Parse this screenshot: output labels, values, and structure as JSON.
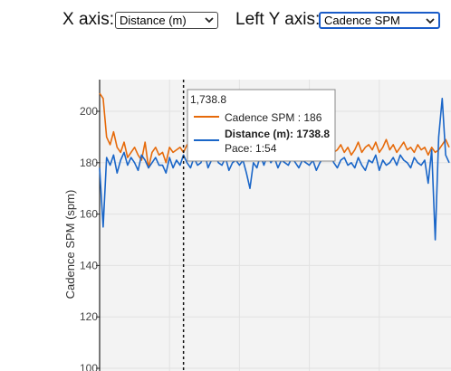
{
  "controls": {
    "x_axis_label": "X axis:",
    "x_axis_value": "Distance (m)",
    "left_y_axis_label": "Left Y axis:",
    "left_y_axis_value": "Cadence SPM"
  },
  "colors": {
    "cadence": "#e66a0a",
    "distance": "#1a66c8",
    "background": "#f3f3f3",
    "grid": "#e2e2e2"
  },
  "tooltip": {
    "header": "1,738.8",
    "row1": "Cadence SPM : 186",
    "row2_bold": "Distance (m): 1738.8",
    "row3": "Pace: 1:54"
  },
  "chart_data": {
    "type": "line",
    "ylabel": "Cadence SPM (spm)",
    "xlabel": "",
    "ylim": [
      100,
      212
    ],
    "yticks": [
      100,
      120,
      140,
      160,
      180,
      200
    ],
    "grid": true,
    "series": [
      {
        "name": "Cadence SPM",
        "points": [
          [
            0,
            207
          ],
          [
            1,
            205
          ],
          [
            2,
            190
          ],
          [
            3,
            187
          ],
          [
            4,
            192
          ],
          [
            5,
            186
          ],
          [
            6,
            184
          ],
          [
            7,
            188
          ],
          [
            8,
            182
          ],
          [
            9,
            184
          ],
          [
            10,
            186
          ],
          [
            11,
            183
          ],
          [
            12,
            181
          ],
          [
            13,
            188
          ],
          [
            14,
            178
          ],
          [
            15,
            184
          ],
          [
            16,
            186
          ],
          [
            17,
            183
          ],
          [
            18,
            184
          ],
          [
            19,
            180
          ],
          [
            20,
            186
          ],
          [
            21,
            184
          ],
          [
            22,
            185
          ],
          [
            23,
            186
          ],
          [
            24,
            184
          ],
          [
            25,
            187
          ],
          [
            26,
            185
          ],
          [
            27,
            186
          ],
          [
            28,
            183
          ],
          [
            29,
            185
          ],
          [
            30,
            186
          ],
          [
            31,
            184
          ],
          [
            32,
            186
          ],
          [
            33,
            187
          ],
          [
            34,
            185
          ],
          [
            35,
            186
          ],
          [
            36,
            185
          ],
          [
            37,
            186
          ],
          [
            38,
            184
          ],
          [
            39,
            186
          ],
          [
            40,
            186
          ],
          [
            60,
            185
          ],
          [
            66,
            186
          ],
          [
            67,
            184
          ],
          [
            68,
            185
          ],
          [
            69,
            187
          ],
          [
            70,
            184
          ],
          [
            71,
            186
          ],
          [
            72,
            183
          ],
          [
            73,
            185
          ],
          [
            74,
            188
          ],
          [
            75,
            184
          ],
          [
            76,
            186
          ],
          [
            77,
            187
          ],
          [
            78,
            185
          ],
          [
            79,
            188
          ],
          [
            80,
            184
          ],
          [
            81,
            186
          ],
          [
            82,
            189
          ],
          [
            83,
            185
          ],
          [
            84,
            187
          ],
          [
            85,
            184
          ],
          [
            86,
            186
          ],
          [
            87,
            188
          ],
          [
            88,
            185
          ],
          [
            89,
            186
          ],
          [
            90,
            184
          ],
          [
            91,
            187
          ],
          [
            92,
            185
          ],
          [
            93,
            186
          ],
          [
            94,
            183
          ],
          [
            95,
            186
          ],
          [
            96,
            184
          ],
          [
            97,
            185
          ],
          [
            98,
            187
          ],
          [
            99,
            189
          ],
          [
            100,
            186
          ]
        ]
      },
      {
        "name": "Distance (m)",
        "points": [
          [
            0,
            178
          ],
          [
            1,
            155
          ],
          [
            2,
            182
          ],
          [
            3,
            179
          ],
          [
            4,
            183
          ],
          [
            5,
            176
          ],
          [
            6,
            181
          ],
          [
            7,
            184
          ],
          [
            8,
            179
          ],
          [
            9,
            182
          ],
          [
            10,
            180
          ],
          [
            11,
            177
          ],
          [
            12,
            183
          ],
          [
            13,
            181
          ],
          [
            14,
            178
          ],
          [
            15,
            180
          ],
          [
            16,
            182
          ],
          [
            17,
            179
          ],
          [
            18,
            179
          ],
          [
            19,
            176
          ],
          [
            20,
            182
          ],
          [
            21,
            178
          ],
          [
            22,
            181
          ],
          [
            23,
            179
          ],
          [
            24,
            183
          ],
          [
            25,
            180
          ],
          [
            26,
            178
          ],
          [
            27,
            182
          ],
          [
            28,
            179
          ],
          [
            29,
            180
          ],
          [
            30,
            184
          ],
          [
            31,
            178
          ],
          [
            32,
            181
          ],
          [
            33,
            183
          ],
          [
            34,
            180
          ],
          [
            35,
            179
          ],
          [
            36,
            182
          ],
          [
            37,
            177
          ],
          [
            38,
            180
          ],
          [
            39,
            181
          ],
          [
            40,
            179
          ],
          [
            41,
            181
          ],
          [
            42,
            176
          ],
          [
            43,
            170
          ],
          [
            44,
            180
          ],
          [
            45,
            178
          ],
          [
            46,
            183
          ],
          [
            47,
            179
          ],
          [
            48,
            183
          ],
          [
            49,
            180
          ],
          [
            50,
            182
          ],
          [
            51,
            178
          ],
          [
            52,
            181
          ],
          [
            53,
            180
          ],
          [
            54,
            179
          ],
          [
            55,
            182
          ],
          [
            56,
            180
          ],
          [
            57,
            178
          ],
          [
            58,
            181
          ],
          [
            59,
            180
          ],
          [
            60,
            179
          ],
          [
            61,
            181
          ],
          [
            62,
            177
          ],
          [
            63,
            180
          ],
          [
            64,
            182
          ],
          [
            65,
            181
          ],
          [
            66,
            183
          ],
          [
            67,
            180
          ],
          [
            68,
            178
          ],
          [
            69,
            181
          ],
          [
            70,
            182
          ],
          [
            71,
            179
          ],
          [
            72,
            180
          ],
          [
            73,
            178
          ],
          [
            74,
            182
          ],
          [
            75,
            179
          ],
          [
            76,
            177
          ],
          [
            77,
            181
          ],
          [
            78,
            180
          ],
          [
            79,
            183
          ],
          [
            80,
            177
          ],
          [
            81,
            181
          ],
          [
            82,
            179
          ],
          [
            83,
            180
          ],
          [
            84,
            182
          ],
          [
            85,
            179
          ],
          [
            86,
            183
          ],
          [
            87,
            181
          ],
          [
            88,
            180
          ],
          [
            89,
            178
          ],
          [
            90,
            182
          ],
          [
            91,
            180
          ],
          [
            92,
            179
          ],
          [
            93,
            181
          ],
          [
            94,
            172
          ],
          [
            95,
            185
          ],
          [
            96,
            150
          ],
          [
            97,
            190
          ],
          [
            98,
            205
          ],
          [
            99,
            183
          ],
          [
            100,
            180
          ]
        ]
      }
    ],
    "hover_x": 24,
    "annotations": []
  }
}
